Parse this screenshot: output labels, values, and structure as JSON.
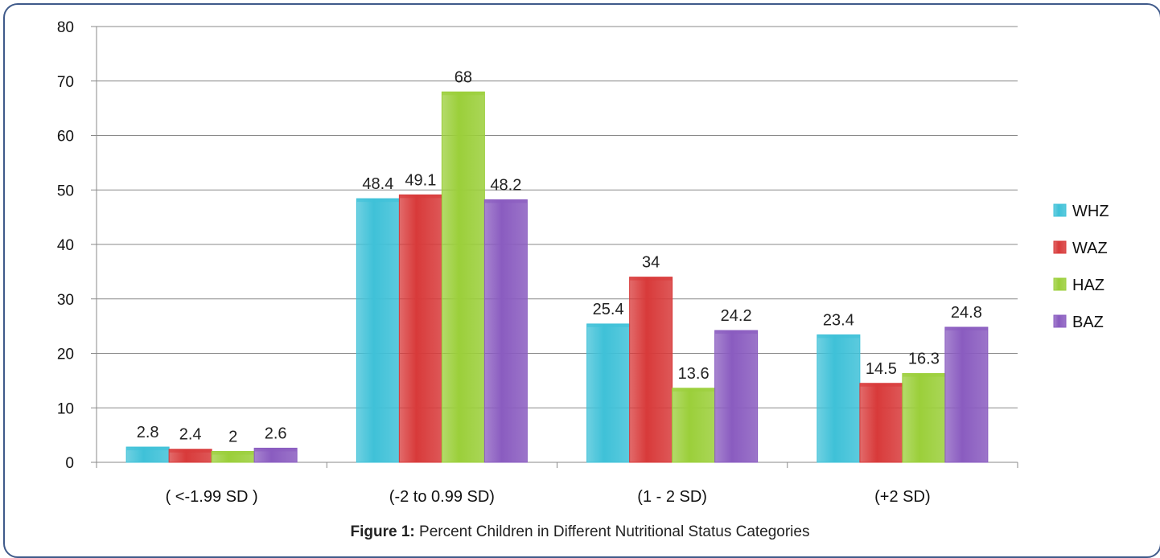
{
  "chart_data": {
    "type": "bar",
    "categories": [
      "( <-1.99 SD )",
      "(-2 to 0.99 SD)",
      "(1 - 2  SD)",
      "(+2 SD)"
    ],
    "series": [
      {
        "name": "WHZ",
        "color": "#3fc1d8",
        "values": [
          2.8,
          48.4,
          25.4,
          23.4
        ]
      },
      {
        "name": "WAZ",
        "color": "#d83a3a",
        "values": [
          2.4,
          49.1,
          34,
          14.5
        ]
      },
      {
        "name": "HAZ",
        "color": "#9bcf3a",
        "values": [
          2,
          68,
          13.6,
          16.3
        ]
      },
      {
        "name": "BAZ",
        "color": "#8a5cc0",
        "values": [
          2.6,
          48.2,
          24.2,
          24.8
        ]
      }
    ],
    "ylim": [
      0,
      80
    ],
    "yticks": [
      0,
      10,
      20,
      30,
      40,
      50,
      60,
      70,
      80
    ],
    "grid": true,
    "legend_position": "right"
  },
  "caption": {
    "label": "Figure 1:",
    "text": " Percent Children in Different Nutritional Status Categories"
  }
}
